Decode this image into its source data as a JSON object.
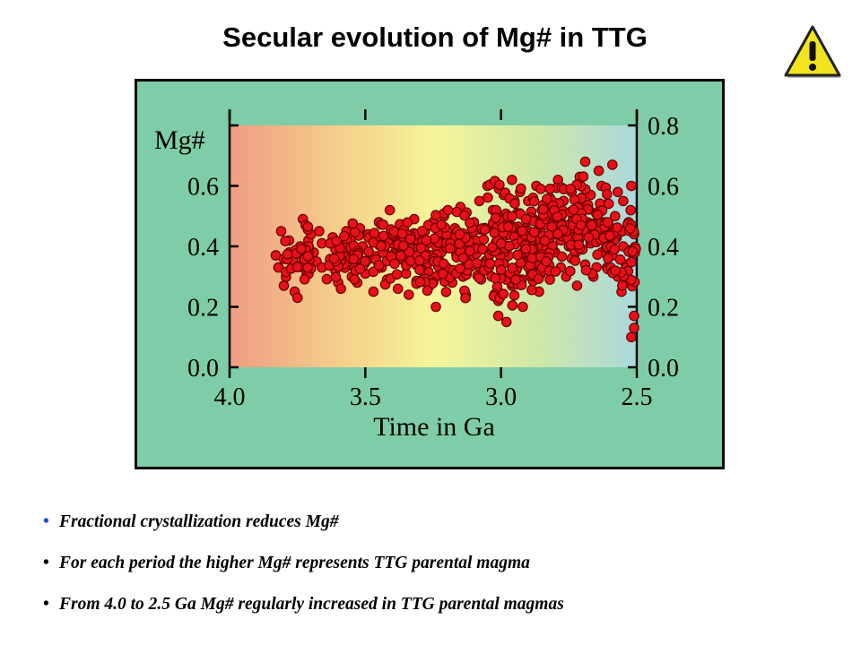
{
  "title": "Secular evolution of Mg# in  TTG",
  "icons": {
    "warning": "warning-icon"
  },
  "colors": {
    "frame_bg": "#7fcda8",
    "gradient": [
      "#f09d82",
      "#f5d48c",
      "#f5f59a",
      "#cfe8a8",
      "#aad8dc"
    ],
    "point_fill": "#e8101a",
    "point_stroke": "#6a0000",
    "bullet_first": "#1f4fd8",
    "bullet_rest": "#000000"
  },
  "chart_data": {
    "type": "scatter",
    "xlabel": "Time in Ga",
    "ylabel": "Mg#",
    "xlim": [
      4.0,
      2.5
    ],
    "ylim": [
      0.0,
      0.8
    ],
    "x_ticks": [
      "4.0",
      "3.5",
      "3.0",
      "2.5"
    ],
    "y_ticks_left": [
      "0.0",
      "0.2",
      "0.4",
      "0.6"
    ],
    "y_ticks_right": [
      "0.0",
      "0.2",
      "0.4",
      "0.6",
      "0.8"
    ],
    "clusters": [
      {
        "x": [
          3.8,
          3.7
        ],
        "y_range": [
          0.25,
          0.48
        ],
        "count": 40
      },
      {
        "x": [
          3.65,
          3.55
        ],
        "y_range": [
          0.28,
          0.45
        ],
        "count": 30
      },
      {
        "x": [
          3.55,
          3.3
        ],
        "y_range": [
          0.25,
          0.52
        ],
        "count": 90
      },
      {
        "x": [
          3.3,
          3.05
        ],
        "y_range": [
          0.2,
          0.55
        ],
        "count": 110
      },
      {
        "x": [
          3.05,
          2.85
        ],
        "y_range": [
          0.15,
          0.65
        ],
        "count": 150
      },
      {
        "x": [
          2.85,
          2.6
        ],
        "y_range": [
          0.25,
          0.68
        ],
        "count": 140
      },
      {
        "x": [
          2.6,
          2.5
        ],
        "y_range": [
          0.1,
          0.6
        ],
        "count": 40
      }
    ],
    "points": [
      [
        3.83,
        0.37
      ],
      [
        3.82,
        0.33
      ],
      [
        3.81,
        0.45
      ],
      [
        3.8,
        0.27
      ],
      [
        3.78,
        0.38
      ],
      [
        3.76,
        0.25
      ],
      [
        3.75,
        0.23
      ],
      [
        3.74,
        0.4
      ],
      [
        3.73,
        0.49
      ],
      [
        3.72,
        0.47
      ],
      [
        3.72,
        0.36
      ],
      [
        3.71,
        0.42
      ],
      [
        3.7,
        0.44
      ],
      [
        3.69,
        0.38
      ],
      [
        3.68,
        0.35
      ],
      [
        3.67,
        0.45
      ],
      [
        3.66,
        0.41
      ],
      [
        3.66,
        0.33
      ],
      [
        3.62,
        0.43
      ],
      [
        3.61,
        0.39
      ],
      [
        3.6,
        0.28
      ],
      [
        3.59,
        0.26
      ],
      [
        3.58,
        0.41
      ],
      [
        3.57,
        0.45
      ],
      [
        3.56,
        0.37
      ],
      [
        3.55,
        0.43
      ],
      [
        3.54,
        0.33
      ],
      [
        3.53,
        0.28
      ],
      [
        3.52,
        0.46
      ],
      [
        3.51,
        0.4
      ],
      [
        3.5,
        0.31
      ],
      [
        3.49,
        0.44
      ],
      [
        3.48,
        0.36
      ],
      [
        3.47,
        0.25
      ],
      [
        3.46,
        0.42
      ],
      [
        3.45,
        0.48
      ],
      [
        3.44,
        0.33
      ],
      [
        3.43,
        0.38
      ],
      [
        3.42,
        0.29
      ],
      [
        3.41,
        0.52
      ],
      [
        3.4,
        0.41
      ],
      [
        3.39,
        0.35
      ],
      [
        3.38,
        0.26
      ],
      [
        3.37,
        0.45
      ],
      [
        3.36,
        0.38
      ],
      [
        3.35,
        0.31
      ],
      [
        3.34,
        0.24
      ],
      [
        3.33,
        0.42
      ],
      [
        3.32,
        0.49
      ],
      [
        3.31,
        0.37
      ],
      [
        3.3,
        0.33
      ],
      [
        3.29,
        0.29
      ],
      [
        3.28,
        0.45
      ],
      [
        3.27,
        0.41
      ],
      [
        3.26,
        0.35
      ],
      [
        3.25,
        0.48
      ],
      [
        3.24,
        0.2
      ],
      [
        3.23,
        0.44
      ],
      [
        3.22,
        0.38
      ],
      [
        3.21,
        0.5
      ],
      [
        3.2,
        0.33
      ],
      [
        3.19,
        0.42
      ],
      [
        3.18,
        0.28
      ],
      [
        3.17,
        0.46
      ],
      [
        3.16,
        0.39
      ],
      [
        3.15,
        0.53
      ],
      [
        3.14,
        0.3
      ],
      [
        3.13,
        0.24
      ],
      [
        3.12,
        0.43
      ],
      [
        3.11,
        0.36
      ],
      [
        3.1,
        0.48
      ],
      [
        3.09,
        0.41
      ],
      [
        3.08,
        0.55
      ],
      [
        3.07,
        0.33
      ],
      [
        3.06,
        0.46
      ],
      [
        3.05,
        0.6
      ],
      [
        3.04,
        0.38
      ],
      [
        3.03,
        0.52
      ],
      [
        3.02,
        0.45
      ],
      [
        3.01,
        0.22
      ],
      [
        3.01,
        0.17
      ],
      [
        3.0,
        0.42
      ],
      [
        3.0,
        0.3
      ],
      [
        2.99,
        0.57
      ],
      [
        2.99,
        0.35
      ],
      [
        2.98,
        0.48
      ],
      [
        2.98,
        0.15
      ],
      [
        2.97,
        0.4
      ],
      [
        2.96,
        0.62
      ],
      [
        2.96,
        0.27
      ],
      [
        2.95,
        0.44
      ],
      [
        2.94,
        0.51
      ],
      [
        2.94,
        0.33
      ],
      [
        2.93,
        0.58
      ],
      [
        2.92,
        0.38
      ],
      [
        2.92,
        0.2
      ],
      [
        2.91,
        0.46
      ],
      [
        2.9,
        0.41
      ],
      [
        2.9,
        0.55
      ],
      [
        2.89,
        0.31
      ],
      [
        2.88,
        0.49
      ],
      [
        2.88,
        0.36
      ],
      [
        2.87,
        0.6
      ],
      [
        2.86,
        0.43
      ],
      [
        2.86,
        0.25
      ],
      [
        2.85,
        0.52
      ],
      [
        2.84,
        0.39
      ],
      [
        2.84,
        0.47
      ],
      [
        2.83,
        0.34
      ],
      [
        2.82,
        0.56
      ],
      [
        2.82,
        0.29
      ],
      [
        2.81,
        0.44
      ],
      [
        2.8,
        0.5
      ],
      [
        2.8,
        0.38
      ],
      [
        2.79,
        0.62
      ],
      [
        2.78,
        0.42
      ],
      [
        2.78,
        0.33
      ],
      [
        2.77,
        0.55
      ],
      [
        2.76,
        0.46
      ],
      [
        2.76,
        0.3
      ],
      [
        2.75,
        0.4
      ],
      [
        2.74,
        0.58
      ],
      [
        2.74,
        0.36
      ],
      [
        2.73,
        0.49
      ],
      [
        2.72,
        0.44
      ],
      [
        2.72,
        0.27
      ],
      [
        2.71,
        0.63
      ],
      [
        2.7,
        0.52
      ],
      [
        2.7,
        0.39
      ],
      [
        2.69,
        0.68
      ],
      [
        2.69,
        0.34
      ],
      [
        2.68,
        0.47
      ],
      [
        2.67,
        0.57
      ],
      [
        2.67,
        0.41
      ],
      [
        2.66,
        0.3
      ],
      [
        2.65,
        0.51
      ],
      [
        2.65,
        0.45
      ],
      [
        2.64,
        0.65
      ],
      [
        2.63,
        0.38
      ],
      [
        2.63,
        0.6
      ],
      [
        2.62,
        0.48
      ],
      [
        2.61,
        0.33
      ],
      [
        2.61,
        0.54
      ],
      [
        2.6,
        0.43
      ],
      [
        2.59,
        0.67
      ],
      [
        2.59,
        0.37
      ],
      [
        2.58,
        0.5
      ],
      [
        2.57,
        0.58
      ],
      [
        2.57,
        0.3
      ],
      [
        2.56,
        0.45
      ],
      [
        2.55,
        0.4
      ],
      [
        2.55,
        0.55
      ],
      [
        2.54,
        0.34
      ],
      [
        2.53,
        0.48
      ],
      [
        2.52,
        0.6
      ],
      [
        2.52,
        0.38
      ],
      [
        2.51,
        0.44
      ],
      [
        2.51,
        0.17
      ],
      [
        2.51,
        0.13
      ],
      [
        2.52,
        0.1
      ]
    ]
  },
  "bullets": [
    "Fractional crystallization reduces Mg#",
    "For each period the higher Mg# represents TTG parental magma",
    "From 4.0 to 2.5 Ga Mg# regularly increased in TTG parental magmas"
  ]
}
